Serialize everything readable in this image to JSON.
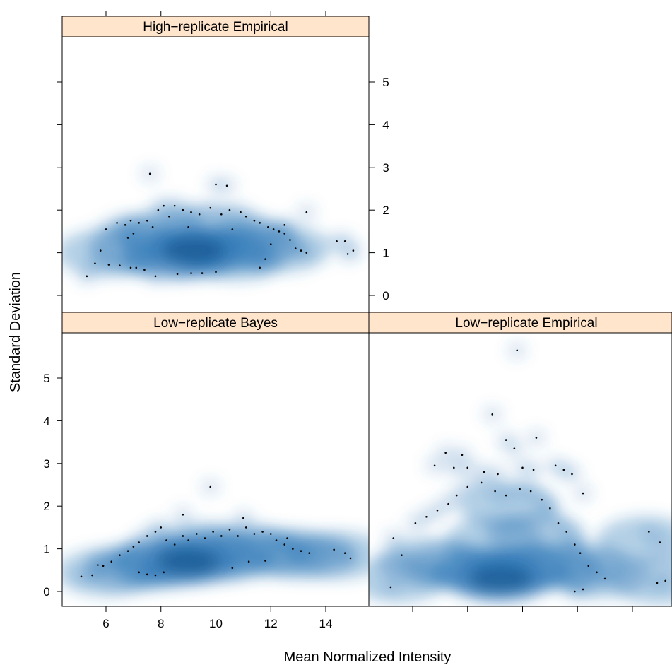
{
  "chart_data": {
    "type": "scatter",
    "subtype": "smoothScatter trellis",
    "xlabel": "Mean Normalized Intensity",
    "ylabel": "Standard Deviation",
    "xlim": [
      4.5,
      15.5
    ],
    "ylim": [
      -0.3,
      6.0
    ],
    "x_ticks": [
      6,
      8,
      10,
      12,
      14
    ],
    "y_ticks": [
      0,
      1,
      2,
      3,
      4,
      5
    ],
    "strip_color": "#ffe5cc",
    "density_color": "#2f78b8",
    "panels": [
      {
        "title": "High−replicate Empirical",
        "density_blobs": [
          [
            9.2,
            1.05
          ],
          [
            8.4,
            0.95
          ],
          [
            10.2,
            1.1
          ],
          [
            7.2,
            1.15
          ],
          [
            11.3,
            1.2
          ],
          [
            9.6,
            1.5
          ],
          [
            6.0,
            1.0
          ],
          [
            12.4,
            1.1
          ],
          [
            8.0,
            1.4
          ],
          [
            10.8,
            0.9
          ]
        ],
        "points": [
          [
            7.6,
            2.85
          ],
          [
            10.0,
            2.6
          ],
          [
            10.4,
            2.57
          ],
          [
            13.3,
            1.95
          ],
          [
            14.7,
            1.27
          ],
          [
            14.4,
            1.27
          ],
          [
            15.0,
            1.05
          ],
          [
            14.8,
            0.97
          ],
          [
            5.3,
            0.45
          ],
          [
            5.6,
            0.75
          ],
          [
            5.8,
            1.05
          ],
          [
            6.0,
            1.55
          ],
          [
            6.1,
            0.72
          ],
          [
            6.5,
            0.7
          ],
          [
            6.9,
            0.65
          ],
          [
            7.1,
            0.65
          ],
          [
            7.4,
            0.6
          ],
          [
            7.8,
            0.45
          ],
          [
            8.6,
            0.5
          ],
          [
            9.1,
            0.52
          ],
          [
            9.5,
            0.52
          ],
          [
            10.0,
            0.55
          ],
          [
            6.4,
            1.7
          ],
          [
            6.7,
            1.65
          ],
          [
            6.9,
            1.75
          ],
          [
            7.2,
            1.7
          ],
          [
            7.5,
            1.75
          ],
          [
            7.9,
            2.0
          ],
          [
            8.1,
            2.1
          ],
          [
            8.3,
            1.85
          ],
          [
            8.5,
            2.1
          ],
          [
            8.8,
            2.0
          ],
          [
            9.1,
            1.95
          ],
          [
            9.4,
            1.9
          ],
          [
            9.8,
            2.05
          ],
          [
            10.2,
            1.9
          ],
          [
            10.5,
            2.0
          ],
          [
            10.9,
            1.95
          ],
          [
            11.1,
            1.85
          ],
          [
            11.4,
            1.75
          ],
          [
            11.6,
            1.7
          ],
          [
            11.9,
            1.6
          ],
          [
            12.1,
            1.55
          ],
          [
            12.3,
            1.5
          ],
          [
            12.5,
            1.45
          ],
          [
            12.7,
            1.3
          ],
          [
            12.9,
            1.1
          ],
          [
            13.1,
            1.05
          ],
          [
            13.3,
            1.0
          ],
          [
            11.6,
            0.65
          ],
          [
            11.8,
            0.85
          ],
          [
            12.5,
            1.65
          ],
          [
            12.0,
            1.2
          ],
          [
            7.7,
            1.6
          ],
          [
            7.0,
            1.45
          ],
          [
            6.8,
            1.35
          ],
          [
            9.0,
            1.6
          ],
          [
            10.6,
            1.55
          ]
        ]
      },
      {
        "title": "Low−replicate Bayes",
        "density_blobs": [
          [
            9.0,
            0.7
          ],
          [
            8.0,
            0.65
          ],
          [
            10.2,
            0.8
          ],
          [
            7.0,
            0.55
          ],
          [
            11.5,
            0.9
          ],
          [
            6.0,
            0.45
          ],
          [
            12.5,
            0.9
          ],
          [
            9.5,
            1.05
          ],
          [
            14.5,
            0.85
          ],
          [
            13.3,
            0.85
          ]
        ],
        "points": [
          [
            9.8,
            2.45
          ],
          [
            8.8,
            1.8
          ],
          [
            11.0,
            1.72
          ],
          [
            5.1,
            0.35
          ],
          [
            5.5,
            0.38
          ],
          [
            5.7,
            0.62
          ],
          [
            5.9,
            0.6
          ],
          [
            6.2,
            0.7
          ],
          [
            6.5,
            0.85
          ],
          [
            6.8,
            0.95
          ],
          [
            7.0,
            1.05
          ],
          [
            7.2,
            1.15
          ],
          [
            7.5,
            1.3
          ],
          [
            7.8,
            1.4
          ],
          [
            8.0,
            1.5
          ],
          [
            8.2,
            1.2
          ],
          [
            8.5,
            1.1
          ],
          [
            8.8,
            1.3
          ],
          [
            9.0,
            1.2
          ],
          [
            9.3,
            1.35
          ],
          [
            9.6,
            1.25
          ],
          [
            9.9,
            1.4
          ],
          [
            10.2,
            1.3
          ],
          [
            10.5,
            1.45
          ],
          [
            10.8,
            1.3
          ],
          [
            11.1,
            1.5
          ],
          [
            11.4,
            1.35
          ],
          [
            11.7,
            1.4
          ],
          [
            12.0,
            1.35
          ],
          [
            12.2,
            1.2
          ],
          [
            12.5,
            1.1
          ],
          [
            12.8,
            1.0
          ],
          [
            13.1,
            0.95
          ],
          [
            13.4,
            0.9
          ],
          [
            14.3,
            0.98
          ],
          [
            14.7,
            0.9
          ],
          [
            14.9,
            0.78
          ],
          [
            7.2,
            0.45
          ],
          [
            7.5,
            0.4
          ],
          [
            7.8,
            0.38
          ],
          [
            8.1,
            0.45
          ],
          [
            10.6,
            0.55
          ],
          [
            11.2,
            0.7
          ],
          [
            11.8,
            0.72
          ],
          [
            12.6,
            1.25
          ]
        ]
      },
      {
        "title": "Low−replicate Empirical",
        "density_blobs": [
          [
            9.2,
            0.3
          ],
          [
            8.5,
            0.45
          ],
          [
            10.0,
            0.5
          ],
          [
            7.5,
            0.6
          ],
          [
            11.0,
            0.6
          ],
          [
            6.5,
            0.7
          ],
          [
            12.0,
            0.6
          ],
          [
            9.0,
            1.2
          ],
          [
            10.5,
            1.3
          ],
          [
            5.5,
            0.3
          ],
          [
            12.8,
            0.4
          ],
          [
            9.5,
            2.0
          ],
          [
            14.5,
            1.2
          ],
          [
            15.0,
            0.25
          ]
        ],
        "points": [
          [
            9.8,
            5.65
          ],
          [
            8.9,
            4.15
          ],
          [
            10.5,
            3.6
          ],
          [
            9.4,
            3.55
          ],
          [
            9.7,
            3.35
          ],
          [
            7.2,
            3.25
          ],
          [
            7.8,
            3.2
          ],
          [
            6.8,
            2.95
          ],
          [
            7.5,
            2.9
          ],
          [
            8.0,
            2.9
          ],
          [
            8.6,
            2.8
          ],
          [
            9.1,
            2.75
          ],
          [
            10.0,
            2.9
          ],
          [
            10.4,
            2.85
          ],
          [
            11.2,
            2.95
          ],
          [
            11.5,
            2.85
          ],
          [
            11.8,
            2.75
          ],
          [
            12.2,
            2.3
          ],
          [
            5.3,
            1.25
          ],
          [
            5.6,
            0.85
          ],
          [
            6.1,
            1.6
          ],
          [
            6.5,
            1.75
          ],
          [
            6.9,
            1.9
          ],
          [
            7.3,
            2.05
          ],
          [
            7.6,
            2.25
          ],
          [
            8.0,
            2.45
          ],
          [
            8.5,
            2.55
          ],
          [
            9.0,
            2.35
          ],
          [
            9.4,
            2.25
          ],
          [
            9.9,
            2.4
          ],
          [
            10.3,
            2.35
          ],
          [
            10.7,
            2.15
          ],
          [
            11.0,
            1.95
          ],
          [
            11.3,
            1.6
          ],
          [
            11.6,
            1.4
          ],
          [
            11.9,
            1.1
          ],
          [
            12.1,
            0.9
          ],
          [
            12.4,
            0.6
          ],
          [
            12.7,
            0.45
          ],
          [
            13.0,
            0.3
          ],
          [
            14.6,
            1.4
          ],
          [
            15.0,
            1.15
          ],
          [
            15.2,
            0.25
          ],
          [
            14.9,
            0.2
          ],
          [
            5.2,
            0.1
          ],
          [
            11.9,
            0.0
          ],
          [
            12.2,
            0.05
          ]
        ]
      }
    ]
  },
  "layout": {
    "panel_titles": [
      "High−replicate Empirical",
      "Low−replicate Bayes",
      "Low−replicate Empirical"
    ]
  }
}
